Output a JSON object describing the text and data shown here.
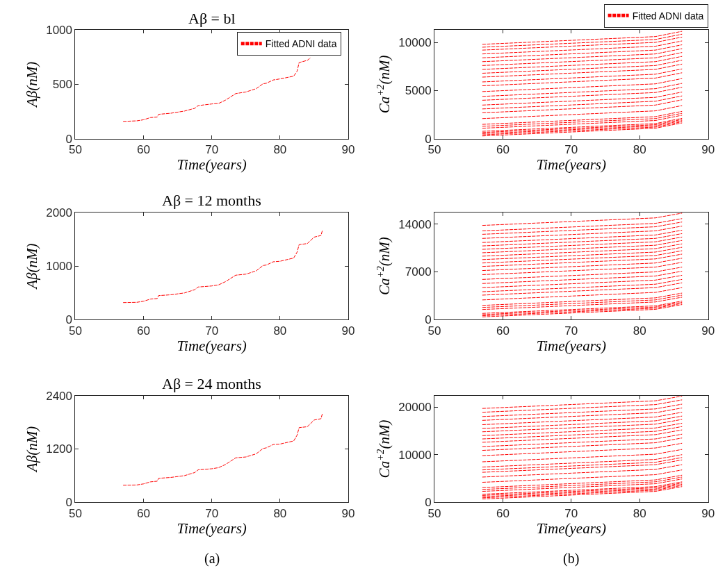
{
  "chart_data": [
    {
      "type": "line",
      "title": "Aβ = bl",
      "xlabel": "Time(years)",
      "ylabel": "Aβ(nM)",
      "xlim": [
        50,
        90
      ],
      "xticks": [
        50,
        60,
        70,
        80,
        90
      ],
      "ylim": [
        0,
        1000
      ],
      "yticks": [
        0,
        500,
        1000
      ],
      "line_style": "dashed",
      "legend": "top right",
      "series": [
        {
          "name": "Fitted ADNI data",
          "color": "#ff0000",
          "x": [
            57,
            59,
            60,
            61,
            62,
            62.2,
            64,
            66,
            67.5,
            68,
            70,
            71,
            72,
            73.5,
            75,
            76.5,
            77.5,
            78,
            79,
            80,
            82,
            82.5,
            82.8,
            84,
            84.5
          ],
          "values": [
            160,
            165,
            175,
            195,
            200,
            225,
            235,
            255,
            280,
            305,
            320,
            325,
            355,
            415,
            430,
            460,
            505,
            510,
            540,
            550,
            575,
            620,
            700,
            720,
            745
          ]
        }
      ]
    },
    {
      "type": "line",
      "ylabel": "Ca$^{+2}$(nM)",
      "xlabel": "Time(years)",
      "xlim": [
        50,
        90
      ],
      "xticks": [
        50,
        60,
        70,
        80,
        90
      ],
      "ylim": [
        0,
        11300
      ],
      "yticks": [
        0,
        5000,
        10000
      ],
      "line_style": "dashed",
      "legend": "top right",
      "x": [
        57,
        82.3,
        86.2
      ],
      "series": [
        {
          "name": "Fitted ADNI data",
          "color": "#ff0000",
          "values": [
            300,
            1100,
            1650
          ]
        },
        {
          "color": "#ff0000",
          "values": [
            420,
            1220,
            1770
          ]
        },
        {
          "color": "#ff0000",
          "values": [
            540,
            1340,
            1890
          ]
        },
        {
          "color": "#ff0000",
          "values": [
            660,
            1460,
            2010
          ]
        },
        {
          "color": "#ff0000",
          "values": [
            780,
            1580,
            2130
          ]
        },
        {
          "color": "#ff0000",
          "values": [
            1100,
            1900,
            2450
          ]
        },
        {
          "color": "#ff0000",
          "values": [
            1300,
            2100,
            2650
          ]
        },
        {
          "color": "#ff0000",
          "values": [
            1500,
            2300,
            2850
          ]
        },
        {
          "color": "#ff0000",
          "values": [
            2100,
            2900,
            3450
          ]
        },
        {
          "color": "#ff0000",
          "values": [
            2700,
            3500,
            4050
          ]
        },
        {
          "color": "#ff0000",
          "values": [
            3100,
            3900,
            4450
          ]
        },
        {
          "color": "#ff0000",
          "values": [
            3500,
            4300,
            4850
          ]
        },
        {
          "color": "#ff0000",
          "values": [
            4000,
            4800,
            5350
          ]
        },
        {
          "color": "#ff0000",
          "values": [
            4400,
            5200,
            5750
          ]
        },
        {
          "color": "#ff0000",
          "values": [
            4900,
            5700,
            6250
          ]
        },
        {
          "color": "#ff0000",
          "values": [
            5500,
            6300,
            6850
          ]
        },
        {
          "color": "#ff0000",
          "values": [
            5900,
            6700,
            7250
          ]
        },
        {
          "color": "#ff0000",
          "values": [
            6400,
            7200,
            7750
          ]
        },
        {
          "color": "#ff0000",
          "values": [
            6800,
            7600,
            8150
          ]
        },
        {
          "color": "#ff0000",
          "values": [
            7200,
            8000,
            8550
          ]
        },
        {
          "color": "#ff0000",
          "values": [
            7600,
            8400,
            8950
          ]
        },
        {
          "color": "#ff0000",
          "values": [
            8000,
            8800,
            9350
          ]
        },
        {
          "color": "#ff0000",
          "values": [
            8400,
            9200,
            9750
          ]
        },
        {
          "color": "#ff0000",
          "values": [
            8800,
            9600,
            10150
          ]
        },
        {
          "color": "#ff0000",
          "values": [
            9200,
            10000,
            10550
          ]
        },
        {
          "color": "#ff0000",
          "values": [
            9500,
            10300,
            10850
          ]
        },
        {
          "color": "#ff0000",
          "values": [
            9800,
            10600,
            11150
          ]
        }
      ]
    },
    {
      "type": "line",
      "title": "Aβ = 12 months",
      "xlabel": "Time(years)",
      "ylabel": "Aβ(nM)",
      "xlim": [
        50,
        90
      ],
      "xticks": [
        50,
        60,
        70,
        80,
        90
      ],
      "ylim": [
        0,
        2000
      ],
      "yticks": [
        0,
        1000,
        2000
      ],
      "line_style": "dashed",
      "series": [
        {
          "color": "#ff0000",
          "x": [
            57,
            59,
            60,
            61,
            62,
            62.2,
            64,
            66,
            67.5,
            68,
            70,
            71,
            72,
            73.5,
            75,
            76.5,
            77.5,
            78,
            79,
            80,
            82,
            82.5,
            82.8,
            84,
            85,
            86,
            86.2
          ],
          "values": [
            320,
            325,
            345,
            385,
            395,
            450,
            465,
            500,
            560,
            610,
            630,
            650,
            710,
            830,
            850,
            910,
            1010,
            1020,
            1080,
            1090,
            1150,
            1260,
            1400,
            1420,
            1540,
            1570,
            1660
          ]
        }
      ]
    },
    {
      "type": "line",
      "ylabel": "Ca$^{+2}$(nM)",
      "xlabel": "Time(years)",
      "xlim": [
        50,
        90
      ],
      "xticks": [
        50,
        60,
        70,
        80,
        90
      ],
      "ylim": [
        0,
        15700
      ],
      "yticks": [
        0,
        7000,
        14000
      ],
      "line_style": "dashed",
      "x": [
        57,
        82.3,
        86.2
      ],
      "series": [
        {
          "color": "#ff0000",
          "values": [
            420,
            1520,
            2220
          ]
        },
        {
          "color": "#ff0000",
          "values": [
            590,
            1690,
            2390
          ]
        },
        {
          "color": "#ff0000",
          "values": [
            760,
            1860,
            2560
          ]
        },
        {
          "color": "#ff0000",
          "values": [
            930,
            2030,
            2730
          ]
        },
        {
          "color": "#ff0000",
          "values": [
            1500,
            2600,
            3300
          ]
        },
        {
          "color": "#ff0000",
          "values": [
            1800,
            2900,
            3600
          ]
        },
        {
          "color": "#ff0000",
          "values": [
            2100,
            3200,
            3900
          ]
        },
        {
          "color": "#ff0000",
          "values": [
            2900,
            4000,
            4700
          ]
        },
        {
          "color": "#ff0000",
          "values": [
            3600,
            4700,
            5400
          ]
        },
        {
          "color": "#ff0000",
          "values": [
            4100,
            5200,
            5900
          ]
        },
        {
          "color": "#ff0000",
          "values": [
            4700,
            5800,
            6500
          ]
        },
        {
          "color": "#ff0000",
          "values": [
            5300,
            6400,
            7100
          ]
        },
        {
          "color": "#ff0000",
          "values": [
            5900,
            7000,
            7700
          ]
        },
        {
          "color": "#ff0000",
          "values": [
            6600,
            7700,
            8400
          ]
        },
        {
          "color": "#ff0000",
          "values": [
            7200,
            8300,
            9000
          ]
        },
        {
          "color": "#ff0000",
          "values": [
            7800,
            8900,
            9600
          ]
        },
        {
          "color": "#ff0000",
          "values": [
            8300,
            9400,
            10100
          ]
        },
        {
          "color": "#ff0000",
          "values": [
            8800,
            9900,
            10600
          ]
        },
        {
          "color": "#ff0000",
          "values": [
            9300,
            10400,
            11100
          ]
        },
        {
          "color": "#ff0000",
          "values": [
            9800,
            10900,
            11600
          ]
        },
        {
          "color": "#ff0000",
          "values": [
            10300,
            11400,
            12100
          ]
        },
        {
          "color": "#ff0000",
          "values": [
            10800,
            11900,
            12600
          ]
        },
        {
          "color": "#ff0000",
          "values": [
            11300,
            12400,
            13100
          ]
        },
        {
          "color": "#ff0000",
          "values": [
            11900,
            13000,
            13700
          ]
        },
        {
          "color": "#ff0000",
          "values": [
            12500,
            13600,
            14300
          ]
        },
        {
          "color": "#ff0000",
          "values": [
            13000,
            14100,
            14800
          ]
        },
        {
          "color": "#ff0000",
          "values": [
            13800,
            14900,
            15600
          ]
        }
      ]
    },
    {
      "type": "line",
      "title": "Aβ = 24 months",
      "xlabel": "Time(years)",
      "ylabel": "Aβ(nM)",
      "xlim": [
        50,
        90
      ],
      "xticks": [
        50,
        60,
        70,
        80,
        90
      ],
      "ylim": [
        0,
        2400
      ],
      "yticks": [
        0,
        1200,
        2400
      ],
      "line_style": "dashed",
      "annotations": [
        "(a)"
      ],
      "series": [
        {
          "color": "#ff0000",
          "x": [
            57,
            59,
            60,
            61,
            62,
            62.2,
            64,
            66,
            67.5,
            68,
            70,
            71,
            72,
            73.5,
            75,
            76.5,
            77.5,
            78,
            79,
            80,
            82,
            82.5,
            82.8,
            84,
            85,
            86,
            86.2
          ],
          "values": [
            385,
            390,
            415,
            460,
            475,
            540,
            560,
            600,
            670,
            730,
            755,
            780,
            850,
            1000,
            1020,
            1090,
            1210,
            1225,
            1300,
            1310,
            1380,
            1510,
            1680,
            1700,
            1850,
            1880,
            1990
          ]
        }
      ]
    },
    {
      "type": "line",
      "ylabel": "Ca$^{+2}$(nM)",
      "xlabel": "Time(years)",
      "xlim": [
        50,
        90
      ],
      "xticks": [
        50,
        60,
        70,
        80,
        90
      ],
      "ylim": [
        0,
        22400
      ],
      "yticks": [
        0,
        10000,
        20000
      ],
      "line_style": "dashed",
      "annotations": [
        "(b)"
      ],
      "x": [
        57,
        82.3,
        86.2
      ],
      "series": [
        {
          "color": "#ff0000",
          "values": [
            700,
            2300,
            3300
          ]
        },
        {
          "color": "#ff0000",
          "values": [
            950,
            2550,
            3550
          ]
        },
        {
          "color": "#ff0000",
          "values": [
            1200,
            2800,
            3800
          ]
        },
        {
          "color": "#ff0000",
          "values": [
            1450,
            3050,
            4050
          ]
        },
        {
          "color": "#ff0000",
          "values": [
            1700,
            3300,
            4300
          ]
        },
        {
          "color": "#ff0000",
          "values": [
            2300,
            3900,
            4900
          ]
        },
        {
          "color": "#ff0000",
          "values": [
            2700,
            4300,
            5300
          ]
        },
        {
          "color": "#ff0000",
          "values": [
            3100,
            4700,
            5700
          ]
        },
        {
          "color": "#ff0000",
          "values": [
            4200,
            5800,
            6800
          ]
        },
        {
          "color": "#ff0000",
          "values": [
            5300,
            6900,
            7900
          ]
        },
        {
          "color": "#ff0000",
          "values": [
            6300,
            7900,
            8900
          ]
        },
        {
          "color": "#ff0000",
          "values": [
            6800,
            8400,
            9400
          ]
        },
        {
          "color": "#ff0000",
          "values": [
            7400,
            9000,
            10000
          ]
        },
        {
          "color": "#ff0000",
          "values": [
            8500,
            10100,
            11100
          ]
        },
        {
          "color": "#ff0000",
          "values": [
            9800,
            11400,
            12400
          ]
        },
        {
          "color": "#ff0000",
          "values": [
            10900,
            12500,
            13500
          ]
        },
        {
          "color": "#ff0000",
          "values": [
            11700,
            13300,
            14300
          ]
        },
        {
          "color": "#ff0000",
          "values": [
            12600,
            14200,
            15200
          ]
        },
        {
          "color": "#ff0000",
          "values": [
            13300,
            14900,
            15900
          ]
        },
        {
          "color": "#ff0000",
          "values": [
            14000,
            15600,
            16600
          ]
        },
        {
          "color": "#ff0000",
          "values": [
            14800,
            16400,
            17400
          ]
        },
        {
          "color": "#ff0000",
          "values": [
            15500,
            17100,
            18100
          ]
        },
        {
          "color": "#ff0000",
          "values": [
            16300,
            17900,
            18900
          ]
        },
        {
          "color": "#ff0000",
          "values": [
            17200,
            18800,
            19800
          ]
        },
        {
          "color": "#ff0000",
          "values": [
            18000,
            19600,
            20600
          ]
        },
        {
          "color": "#ff0000",
          "values": [
            18900,
            20500,
            21500
          ]
        },
        {
          "color": "#ff0000",
          "values": [
            19700,
            21300,
            22300
          ]
        }
      ]
    }
  ]
}
